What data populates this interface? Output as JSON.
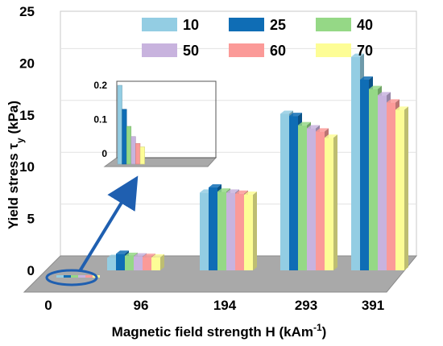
{
  "chart_data": {
    "type": "bar",
    "categories": [
      "0",
      "96",
      "194",
      "293",
      "391"
    ],
    "xlabel": "Magnetic field strength H (kAm",
    "xlabel_sup": "-1",
    "xlabel_end": ")",
    "ylabel": "Yield stress τ",
    "ylabel_sub": "y",
    "ylabel_end": " (kPa)",
    "ylim": [
      0,
      25
    ],
    "yticks": [
      "0",
      "5",
      "10",
      "15",
      "20",
      "25"
    ],
    "legend_position": "top-right",
    "series": [
      {
        "name": "10",
        "color": "#93cde3",
        "values": [
          0.2,
          1.2,
          7.5,
          15.1,
          20.6
        ]
      },
      {
        "name": "25",
        "color": "#0f6db5",
        "values": [
          0.13,
          1.6,
          8.0,
          14.9,
          18.4
        ]
      },
      {
        "name": "40",
        "color": "#95d886",
        "values": [
          0.08,
          1.4,
          7.6,
          14.0,
          17.5
        ]
      },
      {
        "name": "50",
        "color": "#c8b3de",
        "values": [
          0.05,
          1.35,
          7.5,
          13.7,
          16.9
        ]
      },
      {
        "name": "60",
        "color": "#fb9a98",
        "values": [
          0.03,
          1.3,
          7.4,
          13.4,
          16.2
        ]
      },
      {
        "name": "70",
        "color": "#fdfd96",
        "values": [
          0.02,
          1.25,
          7.3,
          12.8,
          15.5
        ]
      }
    ],
    "inset": {
      "category": "0",
      "ylim": [
        0,
        0.2
      ],
      "yticks": [
        "0",
        "0.1",
        "0.2"
      ]
    }
  }
}
